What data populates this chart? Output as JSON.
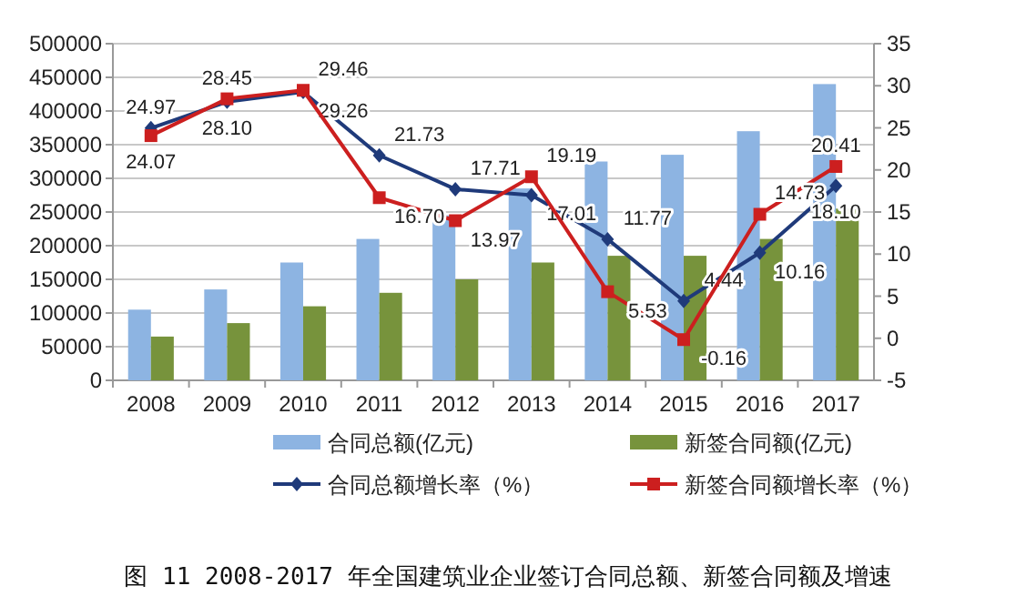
{
  "chart_data": {
    "type": "bar",
    "annotations": [
      "图 11 2008-2017 年全国建筑业企业签订合同总额、新签合同额及增速"
    ],
    "categories": [
      "2008",
      "2009",
      "2010",
      "2011",
      "2012",
      "2013",
      "2014",
      "2015",
      "2016",
      "2017"
    ],
    "series": [
      {
        "name": "合同总额(亿元)",
        "color": "#8db4e2",
        "values": [
          105000,
          135000,
          175000,
          210000,
          245000,
          285000,
          325000,
          335000,
          370000,
          440000
        ]
      },
      {
        "name": "新签合同额(亿元)",
        "color": "#77933c",
        "values": [
          65000,
          85000,
          110000,
          130000,
          150000,
          175000,
          185000,
          185000,
          210000,
          255000
        ]
      },
      {
        "name": "合同总额增长率（%）",
        "type": "line",
        "axis": "y2",
        "color": "#1f3a7a",
        "marker": "diamond",
        "values": [
          24.97,
          28.1,
          29.26,
          21.73,
          17.71,
          17.01,
          11.77,
          4.44,
          10.16,
          18.1
        ],
        "value_labels": [
          "24.97",
          "28.10",
          "29.26",
          "21.73",
          "17.71",
          "17.01",
          "11.77",
          "4.44",
          "10.16",
          "18.10"
        ]
      },
      {
        "name": "新签合同额增长率（%）",
        "type": "line",
        "axis": "y2",
        "color": "#cc1f1f",
        "marker": "square",
        "values": [
          24.07,
          28.45,
          29.46,
          16.7,
          13.97,
          19.19,
          5.53,
          -0.16,
          14.73,
          20.41
        ],
        "value_labels": [
          "24.07",
          "28.45",
          "29.46",
          "16.70",
          "13.97",
          "19.19",
          "5.53",
          "-0.16",
          "14.73",
          "20.41"
        ]
      }
    ],
    "ylim": [
      0,
      500000
    ],
    "yticks": [
      0,
      50000,
      100000,
      150000,
      200000,
      250000,
      300000,
      350000,
      400000,
      450000,
      500000
    ],
    "y2lim": [
      -5,
      35
    ],
    "y2ticks": [
      -5,
      0,
      5,
      10,
      15,
      20,
      25,
      30,
      35
    ],
    "grid": "y",
    "legend": "bottom"
  }
}
